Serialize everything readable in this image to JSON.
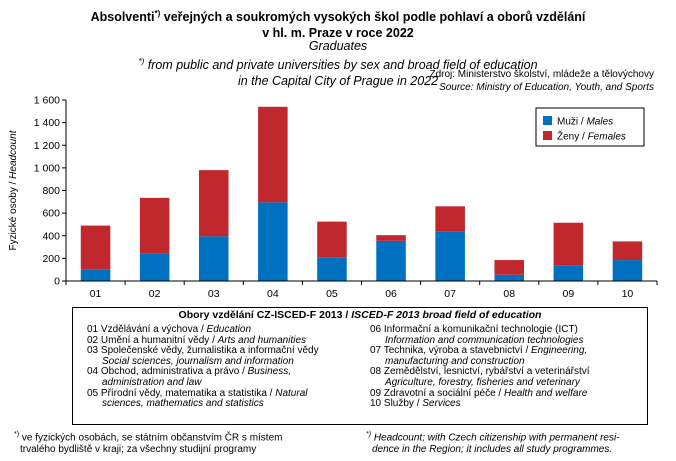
{
  "title": {
    "cz_line1": "Absolventi",
    "cz_mark": "*)",
    "cz_line1_rest": " veřejných a soukromých  vysokých  škol podle pohlaví a oborů vzdělání",
    "cz_line2": "v hl. m. Praze v roce 2022",
    "en_line1": "Graduates",
    "en_mark": "*)",
    "en_line1_rest": " from public and private universities by sex and broad field of education",
    "en_line2": "in the Capital City of Prague  in 2022"
  },
  "source": {
    "cz": "Zdroj: Ministerstvo školství, mládeže a tělovýchovy",
    "en": "Source: Ministry of Education, Youth, and Sports"
  },
  "chart_data": {
    "type": "bar",
    "stacked": true,
    "categories": [
      "01",
      "02",
      "03",
      "04",
      "05",
      "06",
      "07",
      "08",
      "09",
      "10"
    ],
    "series": [
      {
        "name": "Muži / Males",
        "legend_cz": "Muži / ",
        "legend_en": "Males",
        "color": "#0070c0",
        "values": [
          100,
          240,
          395,
          695,
          210,
          355,
          440,
          55,
          135,
          185
        ]
      },
      {
        "name": "Ženy / Females",
        "legend_cz": "Ženy / ",
        "legend_en": "Females",
        "color": "#c0282d",
        "values": [
          390,
          495,
          585,
          845,
          315,
          50,
          220,
          130,
          380,
          165
        ]
      }
    ],
    "ylabel": "Fyzické osoby / Headcount",
    "ylabel_cz": "Fyzické osoby / ",
    "ylabel_en": "Headcount",
    "ylim": [
      0,
      1600
    ],
    "yticks": [
      0,
      200,
      400,
      600,
      800,
      1000,
      1200,
      1400,
      1600
    ],
    "ytick_labels": [
      "0",
      "200",
      "400",
      "600",
      "800",
      "1 000",
      "1 200",
      "1 400",
      "1 600"
    ],
    "grid": false,
    "legend": "top-right"
  },
  "categories_box": {
    "title_cz": "Obory vzdělání CZ-ISCED-F 2013 / ",
    "title_en": "ISCED-F 2013 broad field of education",
    "left": [
      {
        "cz": "01 Vzdělávání a výchova / ",
        "en": "Education",
        "en2": ""
      },
      {
        "cz": "02 Umění a humanitní  vědy / ",
        "en": "Arts and humanities",
        "en2": ""
      },
      {
        "cz": "03 Společenské vědy, žurnalistika a informační vědy",
        "en": "",
        "en2": "Social sciences, journalism and information"
      },
      {
        "cz": "04 Obchod, administrativa a právo / ",
        "en": "Business,",
        "en2": "administration and law"
      },
      {
        "cz": "05 Přírodní  vědy, matematika a statistika / ",
        "en": "Natural",
        "en2": "sciences, mathematics and statistics"
      }
    ],
    "right": [
      {
        "cz": "06 Informační a komunikační technologie (ICT)",
        "en": "",
        "en2": "Information and communication technologies"
      },
      {
        "cz": "07 Technika, výroba a stavebnictví / ",
        "en": "Engineering,",
        "en2": "manufacturing and construction"
      },
      {
        "cz": "08 Zemědělství, lesnictví, rybářství a veterinářství",
        "en": "",
        "en2": "Agriculture, forestry, fisheries and veterinary"
      },
      {
        "cz": "09 Zdravotní a sociální péče / ",
        "en": "Health and welfare",
        "en2": ""
      },
      {
        "cz": "10 Služby / ",
        "en": "Services",
        "en2": ""
      }
    ]
  },
  "footnotes": {
    "mark": "*)",
    "cz_line1": " ve fyzických osobách, se státním občanstvím ČR  s místem",
    "cz_line2": "trvalého bydliště v kraji;  za všechny studijní programy",
    "en_line1": " Headcount; with Czech citizenship with permanent resi-",
    "en_line2": "dence in the Region; it includes all study programmes."
  }
}
